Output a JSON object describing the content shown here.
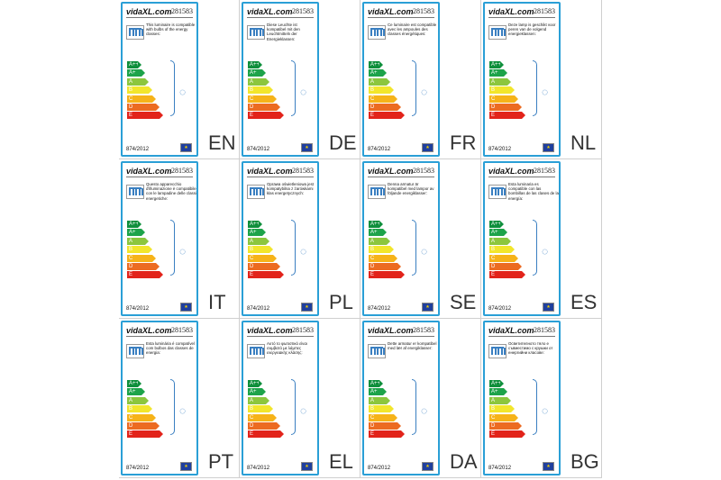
{
  "logo": "vidaXL.com",
  "code": "281583",
  "regulation": "874/2012",
  "eu_flag": "★",
  "energy_classes": [
    "A++",
    "A+",
    "A",
    "B",
    "C",
    "D",
    "E"
  ],
  "class_colors": [
    "#0f8f3c",
    "#1da34a",
    "#8cc63e",
    "#f2e62c",
    "#f6b319",
    "#ec6b21",
    "#e2231a"
  ],
  "cells": [
    {
      "lang": "EN",
      "desc": "This luminaire is compatible with bulbs of the energy classes:"
    },
    {
      "lang": "DE",
      "desc": "Diese Leuchte ist kompatibel mit den Leuchtmitteln der Energieklassen:"
    },
    {
      "lang": "FR",
      "desc": "Ce luminaire est compatible avec les ampoules des classes énergétiques:"
    },
    {
      "lang": "NL",
      "desc": "Deze lamp is geschikt voor peren van de volgend energieklassen:"
    },
    {
      "lang": "IT",
      "desc": "Questo apparecchio d'illuminazione è compatibile con le lampadine delle classi energetiche:"
    },
    {
      "lang": "PL",
      "desc": "Oprawa oświetleniowa jest kompatybilna z żarówkami klas energetycznych:"
    },
    {
      "lang": "SE",
      "desc": "Denna armatur är kompatibel med lampor av följande energiklasser:"
    },
    {
      "lang": "ES",
      "desc": "Esta luminaria es compatible con las bombillas de las clases de la energía:"
    },
    {
      "lang": "PT",
      "desc": "Esta luminária é compatível com bulbos das classes de energia:"
    },
    {
      "lang": "EL",
      "desc": "Αυτό το φωτιστικό είναι συμβατό με λάμπες ενεργειακής κλάσης:"
    },
    {
      "lang": "DA",
      "desc": "Dette armatur er kompatibel med lær af energiklasser:"
    },
    {
      "lang": "BG",
      "desc": "Осветителното тяло е съвместимо с крушки от енергийни класове:"
    }
  ]
}
